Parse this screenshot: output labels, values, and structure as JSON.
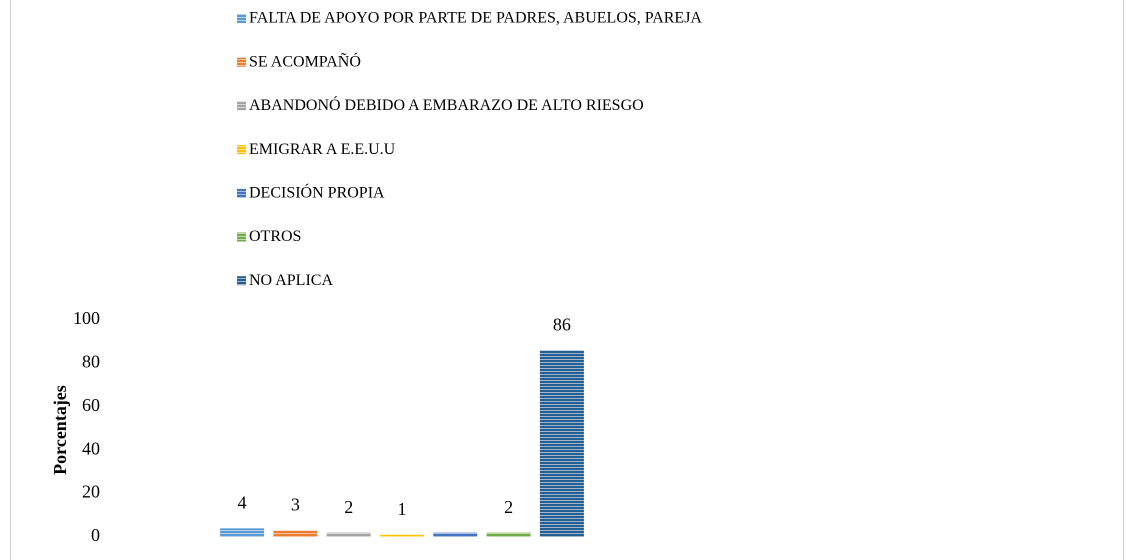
{
  "chart_data": {
    "type": "bar",
    "y_label": "Porcentajes",
    "legend": "top",
    "ylim": [
      0,
      100
    ],
    "yticks": [
      0,
      20,
      40,
      60,
      80,
      100
    ],
    "series": [
      {
        "name": "FALTA DE APOYO POR PARTE DE PADRES, ABUELOS, PAREJA",
        "color": "#5b9bd5",
        "values": [
          4
        ]
      },
      {
        "name": "SE ACOMPAÑÓ",
        "color": "#ed7d31",
        "values": [
          3
        ]
      },
      {
        "name": "ABANDONÓ DEBIDO A EMBARAZO DE ALTO RIESGO",
        "color": "#a5a5a5",
        "values": [
          2
        ]
      },
      {
        "name": "EMIGRAR A E.E.U.U",
        "color": "#ffc000",
        "values": [
          1
        ]
      },
      {
        "name": "DECISIÓN PROPIA",
        "color": "#4472c4",
        "values": [
          2
        ],
        "value_labels": [
          null
        ]
      },
      {
        "name": "OTROS",
        "color": "#70ad47",
        "values": [
          2
        ]
      },
      {
        "name": "NO APLICA",
        "color": "#255e91",
        "values": [
          86
        ]
      }
    ]
  }
}
